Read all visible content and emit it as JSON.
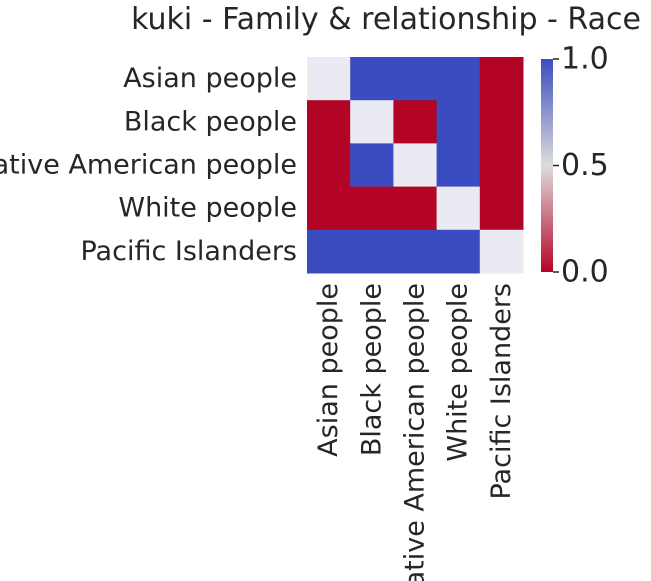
{
  "chart_data": {
    "type": "heatmap",
    "title": "kuki - Family & relationship - Race",
    "xlabel": "",
    "ylabel": "",
    "rows": [
      "Asian people",
      "Black people",
      "Native American people",
      "White people",
      "Pacific Islanders"
    ],
    "columns": [
      "Asian people",
      "Black people",
      "Native American people",
      "White people",
      "Pacific Islanders"
    ],
    "values": [
      [
        0.5,
        1,
        1,
        1,
        0
      ],
      [
        0,
        0.5,
        0,
        1,
        0
      ],
      [
        0,
        1,
        0.5,
        1,
        0
      ],
      [
        0,
        0,
        0,
        0.5,
        0
      ],
      [
        1,
        1,
        1,
        1,
        0.5
      ]
    ],
    "colorbar": {
      "range": [
        0,
        1
      ],
      "ticks": [
        "0.0",
        "0.5",
        "1.0"
      ],
      "colormap": "coolwarm_r",
      "colors": {
        "low": "#b40426",
        "mid": "#dddcdc",
        "high": "#3b4cc0"
      }
    },
    "diagonal_color": "#eaeaf2",
    "grid": false,
    "legend": "colorbar-right"
  }
}
